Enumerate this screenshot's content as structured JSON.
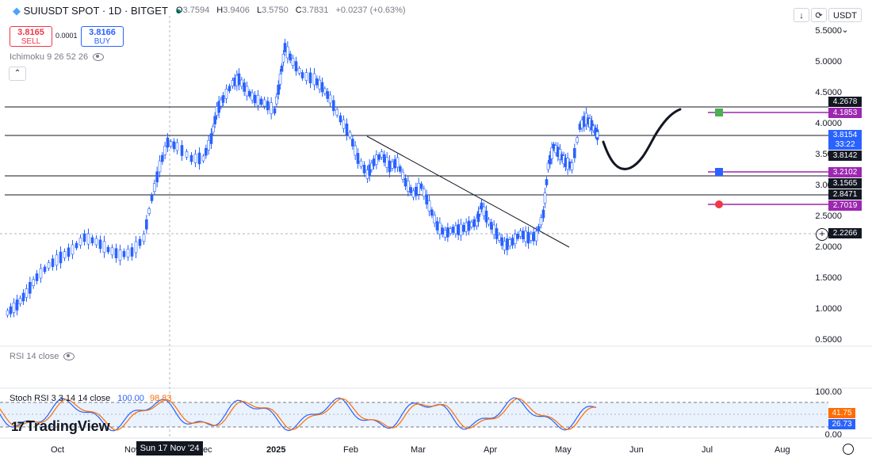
{
  "header": {
    "symbol": "SUIUSDT SPOT · 1D · BITGET",
    "ohlc": {
      "o_label": "O",
      "o": "3.7594",
      "h_label": "H",
      "h": "3.9406",
      "l_label": "L",
      "l": "3.5750",
      "c_label": "C",
      "c": "3.7831",
      "change": "+0.0237 (+0.63%)"
    },
    "sell": {
      "price": "3.8165",
      "label": "SELL"
    },
    "buy": {
      "price": "3.8166",
      "label": "BUY"
    },
    "spread": "0.0001",
    "ichimoku": "Ichimoku 9 26 52 26",
    "collapse": "⌃",
    "currency": "USDT ⌄",
    "download_icon": "↓",
    "refresh_icon": "⟳"
  },
  "price_axis": [
    "5.5000",
    "5.0000",
    "4.5000",
    "4.0000",
    "3.5000",
    "3.0000",
    "2.5000",
    "2.0000",
    "1.5000",
    "1.0000",
    "0.5000"
  ],
  "price_tags": [
    {
      "value": "4.2678",
      "color": "#131722"
    },
    {
      "value": "4.1853",
      "color": "#9c27b0"
    },
    {
      "value": "3.8154",
      "color": "#2962ff"
    },
    {
      "value": "33:22",
      "color": "#2962ff"
    },
    {
      "value": "3.8142",
      "color": "#131722"
    },
    {
      "value": "3.2102",
      "color": "#9c27b0"
    },
    {
      "value": "3.1565",
      "color": "#131722"
    },
    {
      "value": "2.8471",
      "color": "#131722"
    },
    {
      "value": "2.7019",
      "color": "#9c27b0"
    },
    {
      "value": "2.2266",
      "color": "#131722"
    }
  ],
  "rsi": {
    "label": "RSI 14 close"
  },
  "stoch": {
    "label": "Stoch RSI 3 3 14 14 close",
    "k": "100.00",
    "d": "98.83",
    "axis": [
      "100.00",
      "0.00"
    ],
    "tag_d": "41.75",
    "tag_k": "26.73"
  },
  "time_axis": [
    "Oct",
    "Nov",
    "Dec",
    "2025",
    "Feb",
    "Mar",
    "Apr",
    "May",
    "Jun",
    "Jul",
    "Aug"
  ],
  "cursor_date": "Sun 17 Nov '24",
  "logo": {
    "mark": "17",
    "text": "TradingView"
  },
  "colors": {
    "up": "#2962ff",
    "down": "#2962ff",
    "sell": "#f23645",
    "buy": "#2962ff",
    "level": "#131722",
    "alert": "#9c27b0"
  }
}
